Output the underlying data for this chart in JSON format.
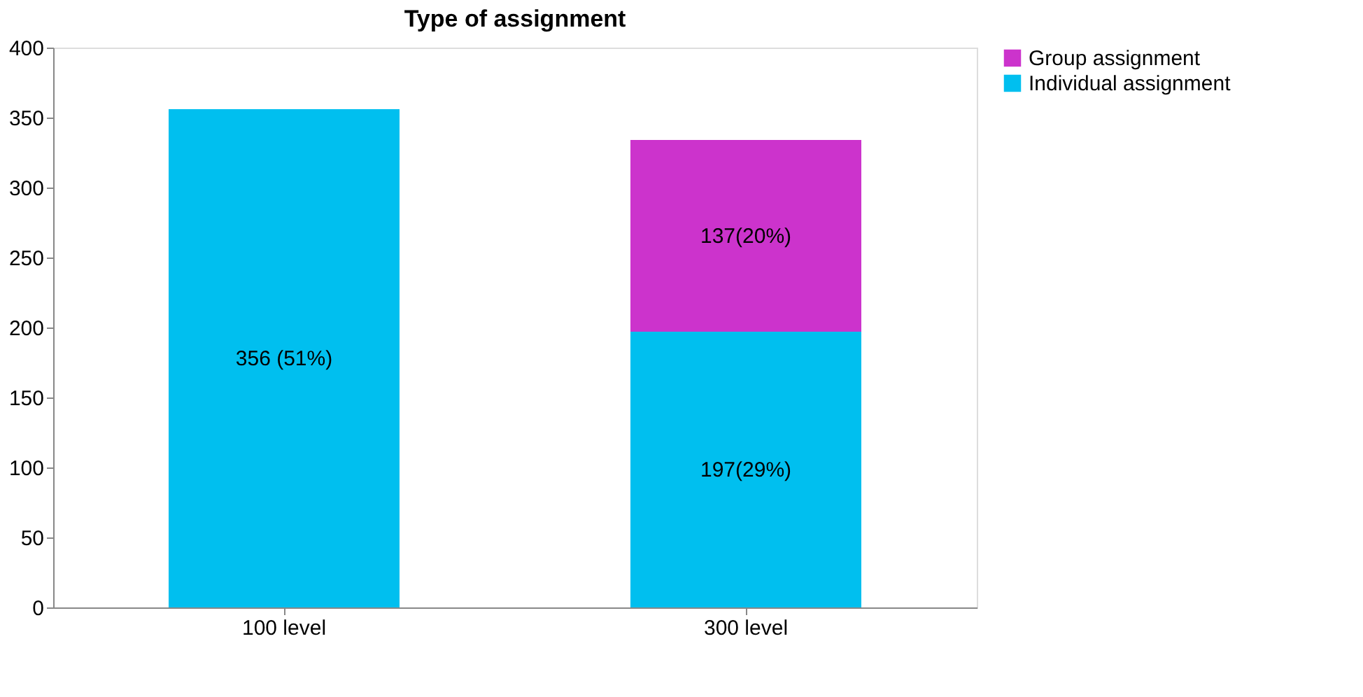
{
  "chart_data": {
    "type": "bar",
    "title": "Type of assignment",
    "stacked": true,
    "categories": [
      "100 level",
      "300 level"
    ],
    "series": [
      {
        "name": "Individual assignment",
        "color": "#00bfef",
        "values": [
          356,
          197
        ],
        "value_labels": [
          "356 (51%)",
          "197(29%)"
        ]
      },
      {
        "name": "Group assignment",
        "color": "#cc33cc",
        "values": [
          null,
          137
        ],
        "value_labels": [
          null,
          "137(20%)"
        ]
      }
    ],
    "ylim": [
      0,
      400
    ],
    "yticks": [
      0,
      50,
      100,
      150,
      200,
      250,
      300,
      350,
      400
    ],
    "grid": false,
    "legend": "right"
  }
}
